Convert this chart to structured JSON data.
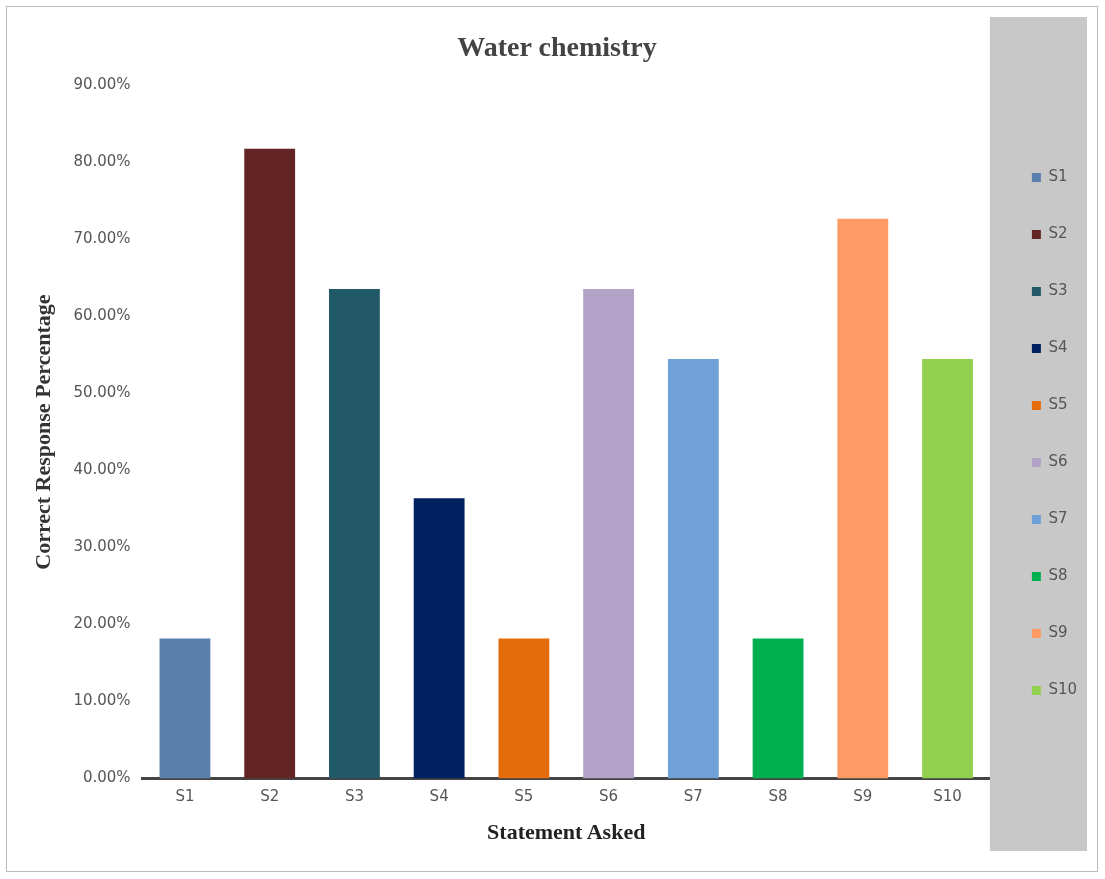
{
  "chart_data": {
    "type": "bar",
    "title": "Water chemistry",
    "xlabel": "Statement Asked",
    "ylabel": "Correct Response Percentage",
    "categories": [
      "S1",
      "S2",
      "S3",
      "S4",
      "S5",
      "S6",
      "S7",
      "S8",
      "S9",
      "S10"
    ],
    "series": [
      {
        "name": "S1",
        "color": "#5b7fad",
        "values": [
          18.2,
          null,
          null,
          null,
          null,
          null,
          null,
          null,
          null,
          null
        ]
      },
      {
        "name": "S2",
        "color": "#632523",
        "values": [
          null,
          81.8,
          null,
          null,
          null,
          null,
          null,
          null,
          null,
          null
        ]
      },
      {
        "name": "S3",
        "color": "#215968",
        "values": [
          null,
          null,
          63.6,
          null,
          null,
          null,
          null,
          null,
          null,
          null
        ]
      },
      {
        "name": "S4",
        "color": "#002060",
        "values": [
          null,
          null,
          null,
          36.4,
          null,
          null,
          null,
          null,
          null,
          null
        ]
      },
      {
        "name": "S5",
        "color": "#e46c0a",
        "values": [
          null,
          null,
          null,
          null,
          18.2,
          null,
          null,
          null,
          null,
          null
        ]
      },
      {
        "name": "S6",
        "color": "#b3a2c7",
        "values": [
          null,
          null,
          null,
          null,
          null,
          63.6,
          null,
          null,
          null,
          null
        ]
      },
      {
        "name": "S7",
        "color": "#6fa0d8",
        "values": [
          null,
          null,
          null,
          null,
          null,
          null,
          54.5,
          null,
          null,
          null
        ]
      },
      {
        "name": "S8",
        "color": "#00b050",
        "values": [
          null,
          null,
          null,
          null,
          null,
          null,
          null,
          18.2,
          null,
          null
        ]
      },
      {
        "name": "S9",
        "color": "#fe9a63",
        "values": [
          null,
          null,
          null,
          null,
          null,
          null,
          null,
          null,
          72.7,
          null
        ]
      },
      {
        "name": "S10",
        "color": "#92d050",
        "values": [
          null,
          null,
          null,
          null,
          null,
          null,
          null,
          null,
          null,
          54.5
        ]
      }
    ],
    "ylim": [
      0,
      90
    ],
    "yticks": [
      {
        "value": 0,
        "label": "0.00%"
      },
      {
        "value": 10,
        "label": "10.00%"
      },
      {
        "value": 20,
        "label": "20.00%"
      },
      {
        "value": 30,
        "label": "30.00%"
      },
      {
        "value": 40,
        "label": "40.00%"
      },
      {
        "value": 50,
        "label": "50.00%"
      },
      {
        "value": 60,
        "label": "60.00%"
      },
      {
        "value": 70,
        "label": "70.00%"
      },
      {
        "value": 80,
        "label": "80.00%"
      },
      {
        "value": 90,
        "label": "90.00%"
      }
    ],
    "grid": false,
    "legend": "right"
  }
}
